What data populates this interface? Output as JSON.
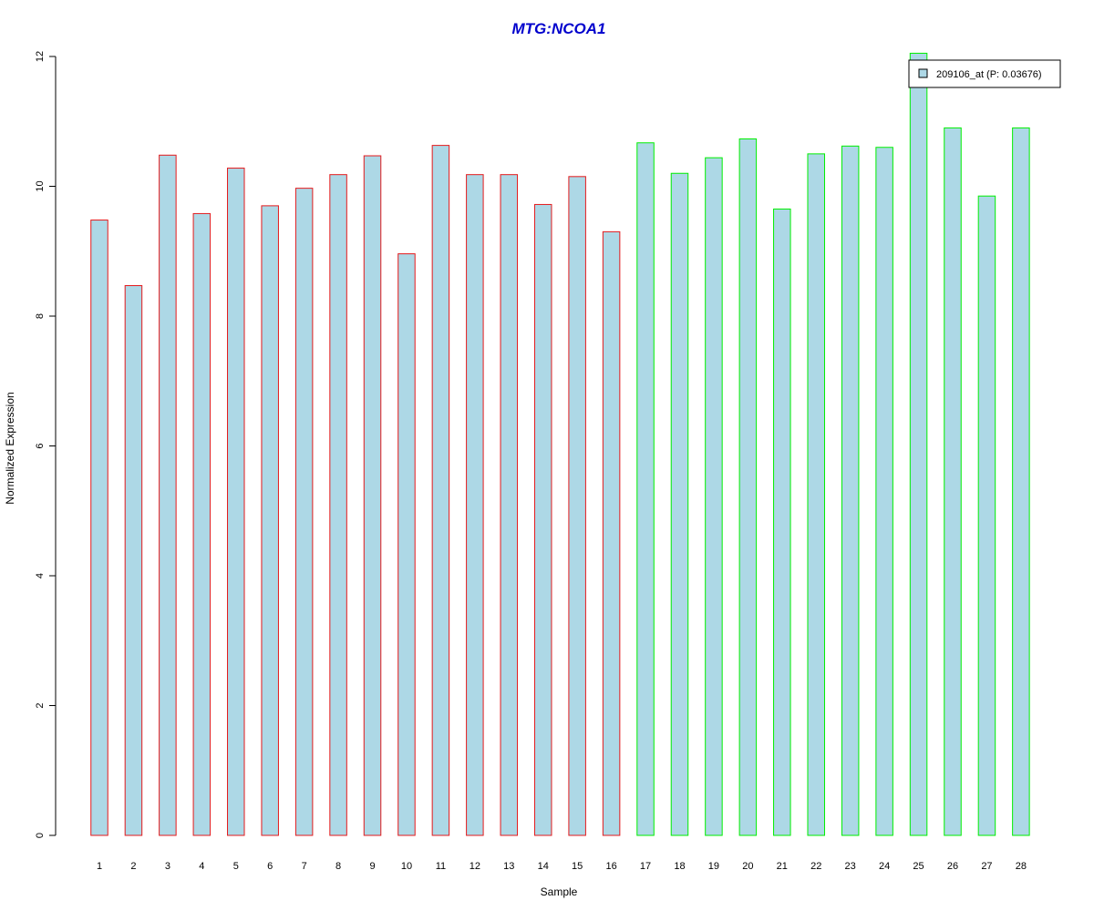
{
  "chart_data": {
    "type": "bar",
    "title": "MTG:NCOA1",
    "xlabel": "Sample",
    "ylabel": "Normalized Expression",
    "ylim": [
      0,
      12
    ],
    "yticks": [
      "0",
      "2",
      "4",
      "6",
      "8",
      "10",
      "12"
    ],
    "categories": [
      "1",
      "2",
      "3",
      "4",
      "5",
      "6",
      "7",
      "8",
      "9",
      "10",
      "11",
      "12",
      "13",
      "14",
      "15",
      "16",
      "17",
      "18",
      "19",
      "20",
      "21",
      "22",
      "23",
      "24",
      "25",
      "26",
      "27",
      "28"
    ],
    "series": [
      {
        "name": "209106_at (P: 0.03676)",
        "values": [
          9.48,
          8.47,
          10.48,
          9.58,
          10.28,
          9.7,
          9.97,
          10.18,
          10.47,
          8.96,
          10.63,
          10.18,
          10.18,
          9.72,
          10.15,
          9.3,
          10.67,
          10.2,
          10.44,
          10.73,
          9.65,
          10.5,
          10.62,
          10.6,
          12.05,
          10.9,
          9.85,
          10.9
        ]
      }
    ],
    "groups": [
      {
        "samples": "1-16",
        "border_color": "#e41a1c"
      },
      {
        "samples": "17-28",
        "border_color": "#00ee00"
      }
    ],
    "bar_fill": "#add8e6",
    "title_color": "#0000cd",
    "legend": {
      "label": "209106_at (P: 0.03676)",
      "placement": "top-right"
    },
    "grid": false
  }
}
